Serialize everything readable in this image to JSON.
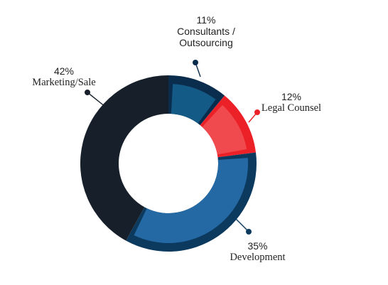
{
  "chart_data": {
    "type": "pie",
    "title": "",
    "slices": [
      {
        "label": "Consultants / Outsourcing",
        "label_lines": [
          "Consultants /",
          "Outsourcing"
        ],
        "value": 11,
        "value_text": "11%",
        "color": "#0b2d4d",
        "accent": "#145a86"
      },
      {
        "label": "Legal Counsel",
        "label_lines": [
          "Legal Counsel"
        ],
        "value": 12,
        "value_text": "12%",
        "color": "#ec2128",
        "accent": "#f0494e"
      },
      {
        "label": "Development",
        "label_lines": [
          "Development"
        ],
        "value": 35,
        "value_text": "35%",
        "color": "#0c3a5e",
        "accent": "#2469a4"
      },
      {
        "label": "Marketing/Sale",
        "label_lines": [
          "Marketing/Sale"
        ],
        "value": 42,
        "value_text": "42%",
        "color": "#17202a",
        "accent": "#17202a"
      }
    ],
    "legend": "none"
  },
  "labels": {
    "consultants_pct": "11%",
    "consultants_line1": "Consultants /",
    "consultants_line2": "Outsourcing",
    "legal_pct": "12%",
    "legal_name": "Legal Counsel",
    "development_pct": "35%",
    "development_name": "Development",
    "marketing_pct": "42%",
    "marketing_name": "Marketing/Sale"
  }
}
